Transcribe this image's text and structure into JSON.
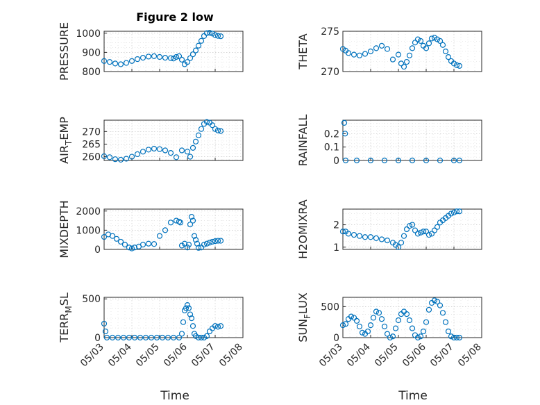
{
  "figure": {
    "title": "Figure 2 low",
    "xlabel": "Time",
    "marker_color": "#0072BD",
    "x_ticks": [
      "05/03",
      "05/04",
      "05/05",
      "05/06",
      "05/07",
      "05/08"
    ]
  },
  "chart_data": [
    {
      "type": "scatter",
      "ylabel": "PRESSURE",
      "yticks": [
        "800",
        "900",
        "1000"
      ],
      "ytick_values": [
        800,
        900,
        1000
      ],
      "ylim": [
        800,
        1010
      ],
      "xlim": [
        "05/03",
        "05/08"
      ],
      "grid": true,
      "x": [
        0,
        0.5,
        1,
        1.5,
        2,
        2.2,
        2.4,
        2.6,
        2.8,
        3,
        3.2,
        3.4,
        3.6,
        3.8,
        4,
        4.2
      ],
      "series": [
        {
          "x": [
            0,
            0.2,
            0.4,
            0.6,
            0.8,
            1,
            1.2,
            1.4,
            1.6,
            1.8,
            2,
            2.2,
            2.4,
            2.5,
            2.6,
            2.7,
            2.8,
            2.9,
            3,
            3.1,
            3.2,
            3.3,
            3.4,
            3.5,
            3.6,
            3.7,
            3.8,
            3.9,
            4,
            4.1,
            4.2
          ],
          "y": [
            855,
            850,
            842,
            838,
            845,
            855,
            865,
            872,
            878,
            880,
            876,
            872,
            870,
            868,
            876,
            880,
            862,
            838,
            850,
            870,
            890,
            910,
            935,
            960,
            985,
            1000,
            1002,
            998,
            990,
            986,
            984
          ]
        }
      ]
    },
    {
      "type": "scatter",
      "ylabel": "THETA",
      "yticks": [
        "270",
        "275"
      ],
      "ytick_values": [
        270,
        275
      ],
      "ylim": [
        270,
        275
      ],
      "xlim": [
        "05/03",
        "05/08"
      ],
      "grid": true,
      "series": [
        {
          "x": [
            0,
            0.1,
            0.2,
            0.4,
            0.6,
            0.8,
            1,
            1.2,
            1.4,
            1.6,
            1.8,
            2,
            2.1,
            2.2,
            2.3,
            2.4,
            2.5,
            2.6,
            2.7,
            2.8,
            2.9,
            3,
            3.1,
            3.2,
            3.3,
            3.4,
            3.5,
            3.6,
            3.7,
            3.8,
            3.9,
            4,
            4.1,
            4.2
          ],
          "y": [
            272.8,
            272.6,
            272.3,
            272.1,
            272.0,
            272.2,
            272.5,
            272.9,
            273.2,
            272.8,
            271.5,
            272.1,
            271.0,
            270.6,
            271.2,
            272.0,
            272.9,
            273.6,
            274.0,
            273.8,
            273.2,
            272.9,
            273.5,
            274.1,
            274.2,
            274.0,
            273.8,
            273.3,
            272.5,
            271.8,
            271.3,
            271.0,
            270.8,
            270.7
          ]
        }
      ]
    },
    {
      "type": "scatter",
      "ylabel": "AIR_TEMP",
      "yticks": [
        "260",
        "265",
        "270"
      ],
      "ytick_values": [
        260,
        265,
        270
      ],
      "ylim": [
        258.5,
        274.5
      ],
      "xlim": [
        "05/03",
        "05/08"
      ],
      "grid": true,
      "series": [
        {
          "x": [
            0,
            0.2,
            0.4,
            0.6,
            0.8,
            1,
            1.2,
            1.4,
            1.6,
            1.8,
            2,
            2.2,
            2.4,
            2.6,
            2.8,
            3,
            3.1,
            3.2,
            3.3,
            3.4,
            3.5,
            3.6,
            3.7,
            3.8,
            3.9,
            4,
            4.1,
            4.2
          ],
          "y": [
            260.2,
            259.8,
            259.0,
            258.8,
            259.2,
            260.0,
            261.0,
            262.0,
            262.8,
            263.2,
            263.0,
            262.5,
            261.5,
            259.8,
            262.5,
            262.0,
            260.0,
            263.5,
            266.0,
            268.5,
            271.0,
            273.0,
            273.8,
            273.5,
            272.5,
            271.0,
            270.4,
            270.2
          ]
        }
      ]
    },
    {
      "type": "scatter",
      "ylabel": "RAINFALL",
      "yticks": [
        "0",
        "0.1",
        "0.2"
      ],
      "ytick_values": [
        0,
        0.1,
        0.2
      ],
      "ylim": [
        0,
        0.3
      ],
      "xlim": [
        "05/03",
        "05/08"
      ],
      "grid": true,
      "series": [
        {
          "x": [
            0.05,
            0.08,
            0.1,
            0.5,
            1,
            1.5,
            2,
            2.5,
            3,
            3.5,
            4,
            4.2
          ],
          "y": [
            0.28,
            0.2,
            0,
            0,
            0,
            0,
            0,
            0,
            0,
            0,
            0,
            0
          ]
        }
      ]
    },
    {
      "type": "scatter",
      "ylabel": "MIXDEPTH",
      "yticks": [
        "0",
        "1000",
        "2000"
      ],
      "ytick_values": [
        0,
        1000,
        2000
      ],
      "ylim": [
        0,
        2100
      ],
      "xlim": [
        "05/03",
        "05/08"
      ],
      "grid": true,
      "series": [
        {
          "x": [
            0,
            0.15,
            0.3,
            0.45,
            0.6,
            0.75,
            0.9,
            1,
            1.1,
            1.25,
            1.4,
            1.6,
            1.8,
            2,
            2.2,
            2.4,
            2.6,
            2.7,
            2.75,
            2.8,
            2.9,
            3,
            3.05,
            3.1,
            3.15,
            3.2,
            3.25,
            3.3,
            3.35,
            3.4,
            3.5,
            3.6,
            3.7,
            3.8,
            3.9,
            4,
            4.1,
            4.2
          ],
          "y": [
            650,
            780,
            700,
            550,
            400,
            250,
            100,
            50,
            100,
            150,
            250,
            300,
            280,
            700,
            1000,
            1400,
            1500,
            1450,
            1400,
            200,
            300,
            100,
            250,
            1300,
            1700,
            1500,
            700,
            500,
            300,
            80,
            100,
            250,
            300,
            350,
            400,
            430,
            450,
            450
          ]
        }
      ]
    },
    {
      "type": "scatter",
      "ylabel": "H2OMIXRA",
      "yticks": [
        "1",
        "2"
      ],
      "ytick_values": [
        1,
        2
      ],
      "ylim": [
        0.9,
        2.7
      ],
      "xlim": [
        "05/03",
        "05/08"
      ],
      "grid": true,
      "series": [
        {
          "x": [
            0,
            0.1,
            0.2,
            0.4,
            0.6,
            0.8,
            1,
            1.2,
            1.4,
            1.6,
            1.8,
            1.9,
            2,
            2.1,
            2.2,
            2.3,
            2.4,
            2.5,
            2.6,
            2.7,
            2.8,
            2.9,
            3,
            3.1,
            3.2,
            3.3,
            3.4,
            3.5,
            3.6,
            3.7,
            3.8,
            3.9,
            4,
            4.1,
            4.2
          ],
          "y": [
            1.7,
            1.7,
            1.6,
            1.55,
            1.5,
            1.45,
            1.45,
            1.4,
            1.35,
            1.3,
            1.2,
            1.1,
            1.0,
            1.2,
            1.5,
            1.8,
            1.95,
            2.0,
            1.75,
            1.6,
            1.65,
            1.7,
            1.7,
            1.55,
            1.6,
            1.75,
            1.9,
            2.1,
            2.2,
            2.3,
            2.4,
            2.5,
            2.55,
            2.6,
            2.6
          ]
        }
      ]
    },
    {
      "type": "scatter",
      "ylabel": "TERR_MSL",
      "yticks": [
        "0",
        "500"
      ],
      "ytick_values": [
        0,
        500
      ],
      "ylim": [
        0,
        520
      ],
      "xlim": [
        "05/03",
        "05/08"
      ],
      "grid": true,
      "series": [
        {
          "x": [
            0,
            0.05,
            0.1,
            0.3,
            0.5,
            0.7,
            0.9,
            1.1,
            1.3,
            1.5,
            1.7,
            1.9,
            2.1,
            2.3,
            2.5,
            2.7,
            2.8,
            2.85,
            2.9,
            2.95,
            3,
            3.05,
            3.1,
            3.15,
            3.2,
            3.25,
            3.3,
            3.4,
            3.5,
            3.6,
            3.7,
            3.8,
            3.9,
            4,
            4.1,
            4.2
          ],
          "y": [
            180,
            80,
            0,
            0,
            0,
            0,
            0,
            0,
            0,
            0,
            0,
            0,
            0,
            0,
            0,
            0,
            50,
            200,
            350,
            380,
            420,
            380,
            300,
            250,
            150,
            50,
            20,
            0,
            0,
            0,
            20,
            80,
            120,
            150,
            140,
            150
          ]
        }
      ]
    },
    {
      "type": "scatter",
      "ylabel": "SUN_FLUX",
      "yticks": [
        "0",
        "500"
      ],
      "ytick_values": [
        0,
        500
      ],
      "ylim": [
        0,
        650
      ],
      "xlim": [
        "05/03",
        "05/08"
      ],
      "grid": true,
      "series": [
        {
          "x": [
            0,
            0.1,
            0.2,
            0.3,
            0.4,
            0.5,
            0.6,
            0.7,
            0.8,
            0.9,
            1,
            1.1,
            1.2,
            1.3,
            1.4,
            1.5,
            1.6,
            1.7,
            1.8,
            1.9,
            2,
            2.1,
            2.2,
            2.3,
            2.4,
            2.5,
            2.6,
            2.7,
            2.8,
            2.9,
            3,
            3.1,
            3.2,
            3.3,
            3.4,
            3.5,
            3.6,
            3.7,
            3.8,
            3.9,
            4,
            4.1,
            4.2
          ],
          "y": [
            200,
            220,
            300,
            340,
            320,
            270,
            180,
            80,
            60,
            100,
            200,
            320,
            420,
            400,
            300,
            180,
            60,
            0,
            20,
            150,
            280,
            380,
            420,
            380,
            280,
            150,
            40,
            0,
            20,
            100,
            250,
            450,
            560,
            600,
            580,
            520,
            400,
            250,
            100,
            20,
            0,
            0,
            0
          ]
        }
      ]
    }
  ]
}
